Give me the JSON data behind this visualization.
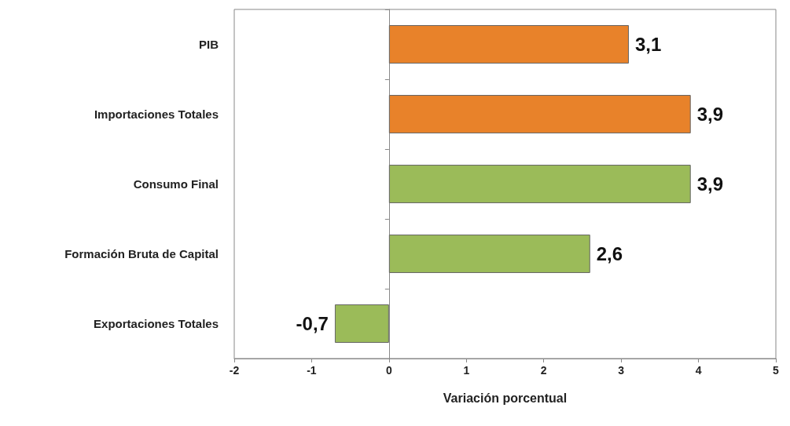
{
  "chart_data": {
    "type": "bar",
    "orientation": "horizontal",
    "categories": [
      "PIB",
      "Importaciones Totales",
      "Consumo Final",
      "Formación Bruta de Capital",
      "Exportaciones Totales"
    ],
    "values": [
      3.1,
      3.9,
      3.9,
      2.6,
      -0.7
    ],
    "colors": [
      "#e8822a",
      "#e8822a",
      "#9bbb59",
      "#9bbb59",
      "#9bbb59"
    ],
    "value_labels": [
      "3,1",
      "3,9",
      "3,9",
      "2,6",
      "-0,7"
    ],
    "xlim": [
      -2,
      5
    ],
    "xticks": [
      {
        "value": -2,
        "label": "-2"
      },
      {
        "value": -1,
        "label": "-1"
      },
      {
        "value": 0,
        "label": "0"
      },
      {
        "value": 1,
        "label": "1"
      },
      {
        "value": 2,
        "label": "2"
      },
      {
        "value": 3,
        "label": "3"
      },
      {
        "value": 4,
        "label": "4"
      },
      {
        "value": 5,
        "label": "5"
      }
    ],
    "xlabel": "Variación porcentual"
  }
}
